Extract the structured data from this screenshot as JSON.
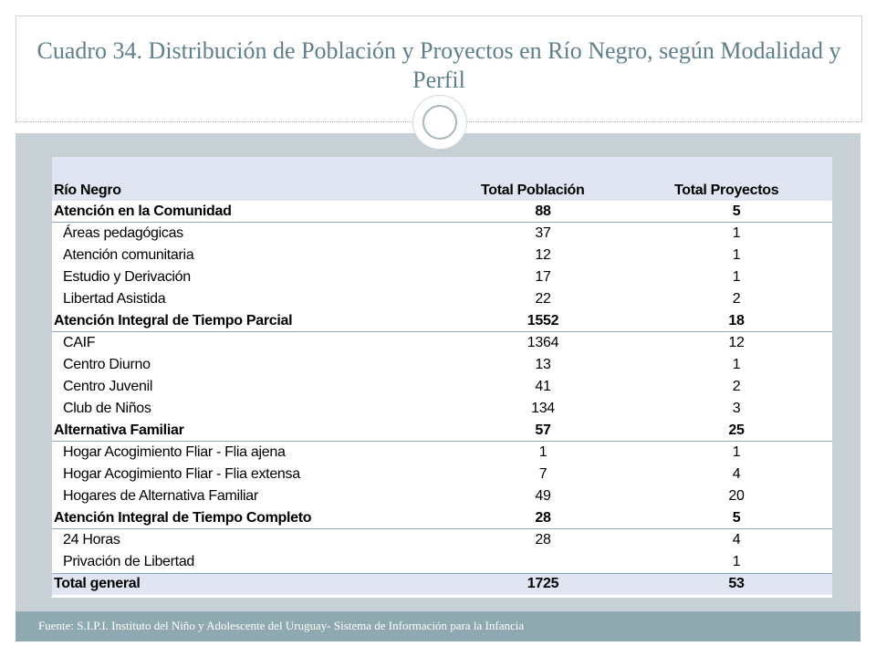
{
  "title": "Cuadro 34. Distribución de Población y Proyectos en Río Negro, según Modalidad y Perfil",
  "table": {
    "headers": [
      "Río Negro",
      "Total Población",
      "Total Proyectos"
    ],
    "rows": [
      {
        "label": "Atención en la Comunidad",
        "pop": "88",
        "proj": "5",
        "kind": "group"
      },
      {
        "label": "Áreas pedagógicas",
        "pop": "37",
        "proj": "1",
        "kind": "sub"
      },
      {
        "label": "Atención comunitaria",
        "pop": "12",
        "proj": "1",
        "kind": "sub"
      },
      {
        "label": "Estudio y Derivación",
        "pop": "17",
        "proj": "1",
        "kind": "sub"
      },
      {
        "label": "Libertad Asistida",
        "pop": "22",
        "proj": "2",
        "kind": "sub"
      },
      {
        "label": "Atención Integral de Tiempo Parcial",
        "pop": "1552",
        "proj": "18",
        "kind": "group"
      },
      {
        "label": "CAIF",
        "pop": "1364",
        "proj": "12",
        "kind": "sub"
      },
      {
        "label": "Centro Diurno",
        "pop": "13",
        "proj": "1",
        "kind": "sub"
      },
      {
        "label": "Centro Juvenil",
        "pop": "41",
        "proj": "2",
        "kind": "sub"
      },
      {
        "label": "Club de Niños",
        "pop": "134",
        "proj": "3",
        "kind": "sub"
      },
      {
        "label": "Alternativa Familiar",
        "pop": "57",
        "proj": "25",
        "kind": "group"
      },
      {
        "label": "Hogar Acogimiento Fliar - Flia ajena",
        "pop": "1",
        "proj": "1",
        "kind": "sub"
      },
      {
        "label": "Hogar Acogimiento Fliar - Flia extensa",
        "pop": "7",
        "proj": "4",
        "kind": "sub"
      },
      {
        "label": "Hogares de Alternativa Familiar",
        "pop": "49",
        "proj": "20",
        "kind": "sub"
      },
      {
        "label": "Atención Integral de Tiempo Completo",
        "pop": "28",
        "proj": "5",
        "kind": "group"
      },
      {
        "label": "24 Horas",
        "pop": "28",
        "proj": "4",
        "kind": "sub"
      },
      {
        "label": "Privación de Libertad",
        "pop": "",
        "proj": "1",
        "kind": "sub"
      },
      {
        "label": "Total general",
        "pop": "1725",
        "proj": "53",
        "kind": "total"
      }
    ]
  },
  "footer": "Fuente: S.I.P.I. Instituto del Niño y Adolescente del Uruguay- Sistema de Información para la Infancia",
  "colors": {
    "title": "#5f7f8a",
    "content_bg": "#c6d0d5",
    "header_bg": "#dfe5f1",
    "footer_bg": "#8ea9af",
    "rule": "#8fa6c9"
  }
}
